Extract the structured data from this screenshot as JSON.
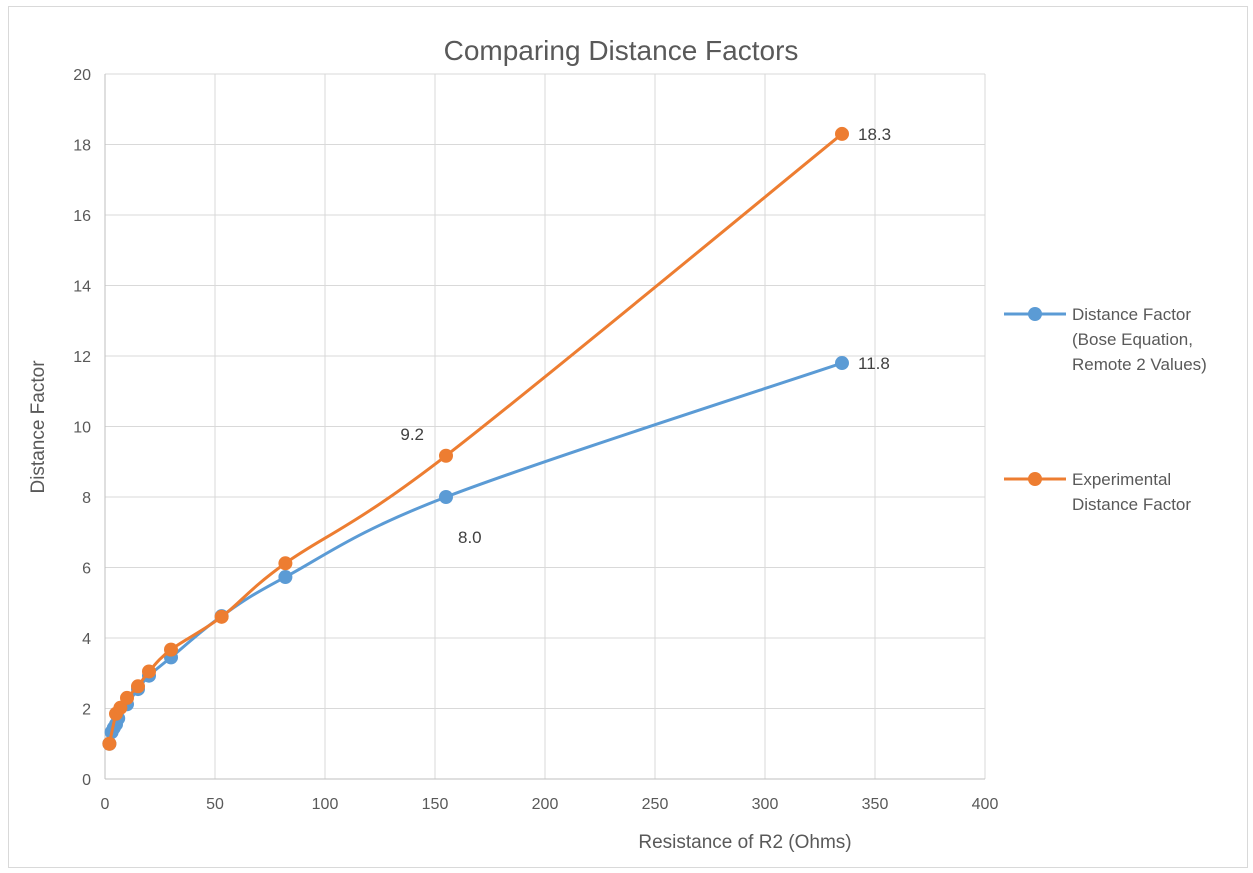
{
  "chart_data": {
    "type": "scatter",
    "title": "Comparing Distance Factors",
    "xlabel": "Resistance of R2 (Ohms)",
    "ylabel": "Distance Factor",
    "xlim": [
      0,
      400
    ],
    "ylim": [
      0,
      20
    ],
    "xticks": [
      0,
      50,
      100,
      150,
      200,
      250,
      300,
      350,
      400
    ],
    "yticks": [
      0,
      2,
      4,
      6,
      8,
      10,
      12,
      14,
      16,
      18,
      20
    ],
    "grid": true,
    "smooth_lines": true,
    "legend_position": "right",
    "series": [
      {
        "name_lines": [
          "Distance Factor",
          "(Bose Equation,",
          "Remote 2 Values)"
        ],
        "color": "#5b9bd5",
        "points": [
          [
            2,
            1.0
          ],
          [
            3,
            1.33
          ],
          [
            4,
            1.45
          ],
          [
            5,
            1.55
          ],
          [
            6,
            1.72
          ],
          [
            10,
            2.12
          ],
          [
            15,
            2.55
          ],
          [
            20,
            2.93
          ],
          [
            30,
            3.45
          ],
          [
            53,
            4.62
          ],
          [
            82,
            5.73
          ],
          [
            155,
            8.0
          ],
          [
            335,
            11.8
          ]
        ],
        "labels": [
          {
            "point": 11,
            "text": "8.0",
            "pos": "below-right"
          },
          {
            "point": 12,
            "text": "11.8",
            "pos": "right"
          }
        ]
      },
      {
        "name_lines": [
          "Experimental",
          "Distance Factor"
        ],
        "color": "#ed7d31",
        "points": [
          [
            2,
            1.0
          ],
          [
            5,
            1.85
          ],
          [
            7,
            2.02
          ],
          [
            10,
            2.3
          ],
          [
            15,
            2.63
          ],
          [
            20,
            3.05
          ],
          [
            30,
            3.67
          ],
          [
            53,
            4.6
          ],
          [
            82,
            6.12
          ],
          [
            155,
            9.17
          ],
          [
            335,
            18.3
          ]
        ],
        "labels": [
          {
            "point": 9,
            "text": "9.2",
            "pos": "above-left"
          },
          {
            "point": 10,
            "text": "18.3",
            "pos": "right"
          }
        ]
      }
    ]
  }
}
